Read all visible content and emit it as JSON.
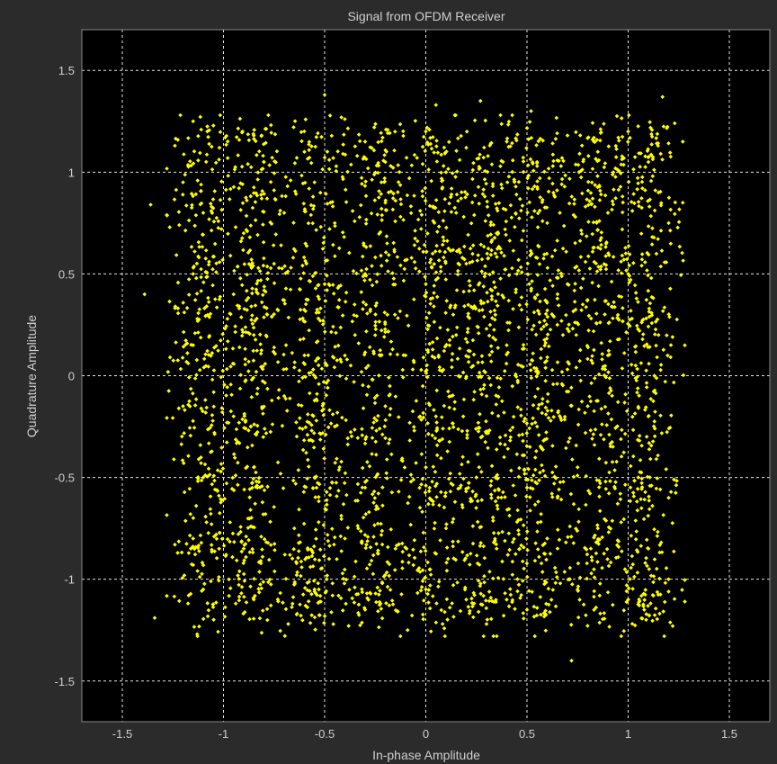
{
  "chart_data": {
    "type": "scatter",
    "title": "Signal from OFDM Receiver",
    "xlabel": "In-phase Amplitude",
    "ylabel": "Quadrature Amplitude",
    "xlim": [
      -1.7,
      1.7
    ],
    "ylim": [
      -1.7,
      1.7
    ],
    "xticks": [
      -1.5,
      -1,
      -0.5,
      0,
      0.5,
      1,
      1.5
    ],
    "yticks": [
      1.5,
      1,
      0.5,
      0,
      -0.5,
      -1,
      -1.5
    ],
    "xtick_labels": [
      "-1.5",
      "-1",
      "-0.5",
      "0",
      "0.5",
      "1",
      "1.5"
    ],
    "ytick_labels": [
      "1.5",
      "1",
      "0.5",
      "0",
      "-0.5",
      "-1",
      "-1.5"
    ],
    "grid": true,
    "grid_style": "dashed",
    "colors": {
      "background": "#000000",
      "frame": "#2b2b2b",
      "marker": "#ffff00",
      "grid": "#e6e6e6"
    },
    "constellation_centers": [
      -1.1,
      -0.85,
      -0.55,
      -0.25,
      0.05,
      0.3,
      0.55,
      0.85,
      1.1
    ],
    "approx_point_count": 3500,
    "points": [
      [
        -1.36,
        0.84
      ],
      [
        -1.39,
        0.4
      ],
      [
        -1.34,
        -1.19
      ],
      [
        -1.24,
        -0.83
      ],
      [
        -1.24,
        1.13
      ],
      [
        0.72,
        -1.4
      ],
      [
        1.17,
        1.37
      ],
      [
        1.23,
        1.24
      ],
      [
        1.27,
        0.85
      ],
      [
        1.22,
        -1.23
      ],
      [
        1.28,
        -1.11
      ],
      [
        0.27,
        1.35
      ],
      [
        -0.5,
        1.38
      ],
      [
        0.05,
        1.33
      ],
      [
        -0.09,
        -1.25
      ],
      [
        0.52,
        1.3
      ],
      [
        0.3,
        -1.22
      ],
      [
        -0.68,
        -1.22
      ],
      [
        -1.13,
        -1.27
      ],
      [
        1.27,
        1.15
      ],
      [
        -1.15,
        1.25
      ],
      [
        -1.08,
        1.2
      ],
      [
        -1.02,
        1.12
      ],
      [
        -0.85,
        1.18
      ],
      [
        -0.8,
        1.05
      ],
      [
        -0.6,
        1.1
      ],
      [
        -0.55,
        0.95
      ],
      [
        -0.3,
        1.15
      ],
      [
        -0.2,
        1.05
      ],
      [
        0.0,
        1.2
      ],
      [
        0.1,
        1.0
      ],
      [
        0.2,
        1.12
      ],
      [
        0.4,
        1.15
      ],
      [
        0.55,
        1.05
      ],
      [
        0.7,
        1.18
      ],
      [
        0.85,
        1.1
      ],
      [
        1.0,
        1.2
      ],
      [
        1.1,
        1.05
      ],
      [
        1.15,
        0.9
      ],
      [
        1.2,
        0.75
      ],
      [
        -1.2,
        0.95
      ],
      [
        -1.1,
        0.8
      ],
      [
        -0.9,
        0.7
      ],
      [
        -0.7,
        0.8
      ],
      [
        -0.45,
        0.75
      ],
      [
        -0.2,
        0.85
      ],
      [
        0.15,
        0.8
      ],
      [
        0.35,
        0.7
      ],
      [
        0.6,
        0.75
      ],
      [
        0.9,
        0.8
      ],
      [
        -1.15,
        0.5
      ],
      [
        -0.95,
        0.4
      ],
      [
        -0.75,
        0.55
      ],
      [
        -0.5,
        0.45
      ],
      [
        -0.3,
        0.5
      ],
      [
        0.0,
        0.45
      ],
      [
        0.2,
        0.55
      ],
      [
        0.45,
        0.5
      ],
      [
        0.7,
        0.45
      ],
      [
        1.0,
        0.5
      ],
      [
        -1.15,
        0.15
      ],
      [
        -0.85,
        0.2
      ],
      [
        -0.6,
        0.1
      ],
      [
        -0.35,
        0.2
      ],
      [
        -0.1,
        0.1
      ],
      [
        0.15,
        0.2
      ],
      [
        0.4,
        0.15
      ],
      [
        0.65,
        0.25
      ],
      [
        0.9,
        0.1
      ],
      [
        1.15,
        0.2
      ],
      [
        -1.2,
        -0.15
      ],
      [
        -0.95,
        -0.2
      ],
      [
        -0.7,
        -0.1
      ],
      [
        -0.45,
        -0.25
      ],
      [
        -0.2,
        -0.15
      ],
      [
        0.05,
        -0.2
      ],
      [
        0.3,
        -0.1
      ],
      [
        0.55,
        -0.25
      ],
      [
        0.8,
        -0.15
      ],
      [
        1.1,
        -0.2
      ],
      [
        -1.1,
        -0.5
      ],
      [
        -0.85,
        -0.45
      ],
      [
        -0.55,
        -0.5
      ],
      [
        -0.3,
        -0.55
      ],
      [
        0.0,
        -0.45
      ],
      [
        0.25,
        -0.5
      ],
      [
        0.5,
        -0.55
      ],
      [
        0.75,
        -0.45
      ],
      [
        1.05,
        -0.5
      ],
      [
        1.2,
        -0.6
      ],
      [
        -1.15,
        -0.8
      ],
      [
        -0.9,
        -0.85
      ],
      [
        -0.65,
        -0.75
      ],
      [
        -0.4,
        -0.8
      ],
      [
        -0.15,
        -0.85
      ],
      [
        0.1,
        -0.75
      ],
      [
        0.35,
        -0.85
      ],
      [
        0.6,
        -0.8
      ],
      [
        0.85,
        -0.75
      ],
      [
        1.1,
        -0.85
      ],
      [
        -1.1,
        -1.05
      ],
      [
        -0.85,
        -1.1
      ],
      [
        -0.55,
        -1.05
      ],
      [
        -0.3,
        -1.15
      ],
      [
        0.0,
        -1.05
      ],
      [
        0.2,
        -1.1
      ],
      [
        0.5,
        -1.15
      ],
      [
        0.75,
        -1.05
      ],
      [
        1.0,
        -1.1
      ],
      [
        1.2,
        -1.0
      ]
    ]
  }
}
